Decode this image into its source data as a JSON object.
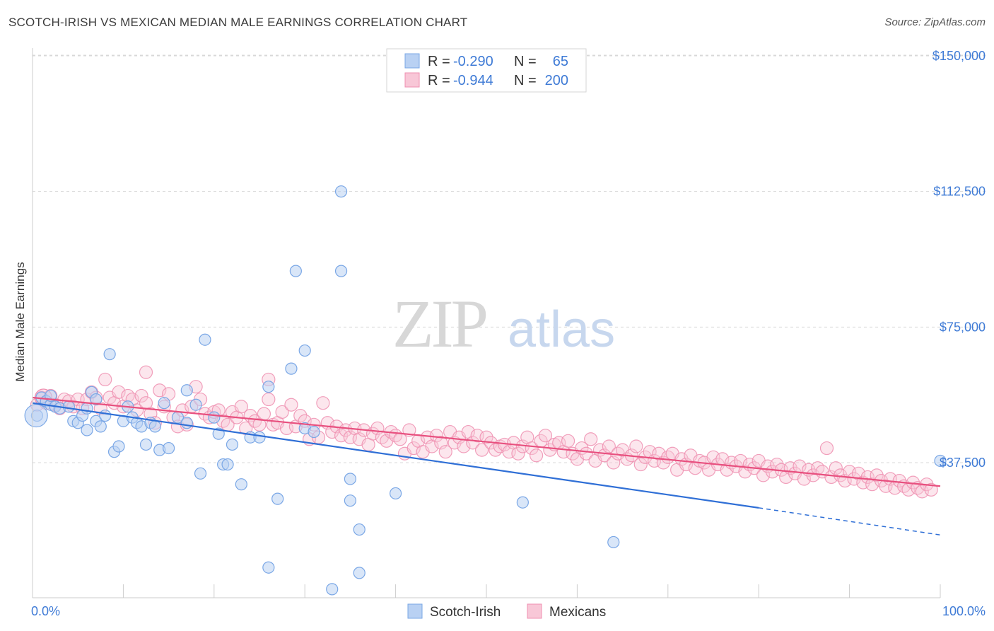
{
  "header": {
    "title": "SCOTCH-IRISH VS MEXICAN MEDIAN MALE EARNINGS CORRELATION CHART",
    "source": "Source: ZipAtlas.com"
  },
  "watermark": {
    "zip": "ZIP",
    "atlas": "atlas"
  },
  "legend": {
    "rows": [
      {
        "r_label": "R = ",
        "r_value": "-0.290",
        "n_label": "N = ",
        "n_value": "65",
        "color": "#a9c6f0"
      },
      {
        "r_label": "R = ",
        "r_value": "-0.944",
        "n_label": "N = ",
        "n_value": "200",
        "color": "#f6b6cb"
      }
    ]
  },
  "bottom_legend": {
    "series1": "Scotch-Irish",
    "series2": "Mexicans"
  },
  "colors": {
    "blue_point": "#7aa7e6",
    "blue_fill": "#b9d1f3",
    "blue_line": "#2f6fd6",
    "pink_point": "#ef8fb0",
    "pink_fill": "#f8c7d7",
    "pink_line": "#e8507f",
    "grid": "#d8d8d8",
    "tick_text": "#3f7bd6"
  },
  "chart_data": {
    "type": "scatter",
    "title": "SCOTCH-IRISH VS MEXICAN MEDIAN MALE EARNINGS CORRELATION CHART",
    "xlabel": "",
    "ylabel": "Median Male Earnings",
    "xlim": [
      0,
      100
    ],
    "ylim": [
      0,
      160000
    ],
    "x_tick_labels": [
      "0.0%",
      "100.0%"
    ],
    "y_ticks": [
      37500,
      75000,
      112500,
      150000
    ],
    "y_tick_labels": [
      "$37,500",
      "$75,000",
      "$112,500",
      "$150,000"
    ],
    "grid": true,
    "legend_position": "top-center",
    "series": [
      {
        "name": "Scotch-Irish",
        "r": -0.29,
        "n": 65,
        "trend": {
          "x0": 0,
          "y0": 54000,
          "x1": 80,
          "y1": 25000,
          "dash_x1": 100,
          "dash_y1": 17500
        },
        "points": [
          [
            0.5,
            50500
          ],
          [
            1,
            55500
          ],
          [
            1.5,
            54500
          ],
          [
            2,
            53500
          ],
          [
            2.5,
            53000
          ],
          [
            3,
            52500
          ],
          [
            4,
            53000
          ],
          [
            4.5,
            49000
          ],
          [
            5,
            48500
          ],
          [
            5.5,
            50500
          ],
          [
            6,
            52500
          ],
          [
            6,
            46500
          ],
          [
            6.5,
            57000
          ],
          [
            7,
            49000
          ],
          [
            7.5,
            47500
          ],
          [
            8,
            50500
          ],
          [
            8.5,
            67500
          ],
          [
            9,
            40500
          ],
          [
            9.5,
            42000
          ],
          [
            10,
            49000
          ],
          [
            10.5,
            53000
          ],
          [
            11,
            50000
          ],
          [
            11.5,
            48500
          ],
          [
            12,
            47500
          ],
          [
            12.5,
            42500
          ],
          [
            13,
            48500
          ],
          [
            13.5,
            47500
          ],
          [
            14,
            41000
          ],
          [
            14.5,
            54000
          ],
          [
            15,
            41500
          ],
          [
            16,
            50000
          ],
          [
            17,
            48500
          ],
          [
            17,
            57500
          ],
          [
            18,
            53500
          ],
          [
            18.5,
            34500
          ],
          [
            19,
            71500
          ],
          [
            20,
            50000
          ],
          [
            20.5,
            45500
          ],
          [
            21,
            37000
          ],
          [
            21.5,
            37000
          ],
          [
            22,
            42500
          ],
          [
            23,
            31500
          ],
          [
            24,
            44500
          ],
          [
            25,
            44500
          ],
          [
            26,
            58500
          ],
          [
            26,
            8500
          ],
          [
            27,
            27500
          ],
          [
            28.5,
            63500
          ],
          [
            29,
            90500
          ],
          [
            30,
            68500
          ],
          [
            30,
            47000
          ],
          [
            31,
            46000
          ],
          [
            33,
            2500
          ],
          [
            34,
            112500
          ],
          [
            34,
            90500
          ],
          [
            35,
            33000
          ],
          [
            35,
            27000
          ],
          [
            36,
            19000
          ],
          [
            36,
            7000
          ],
          [
            40,
            29000
          ],
          [
            54,
            26500
          ],
          [
            64,
            15500
          ],
          [
            100,
            38000
          ],
          [
            2,
            56000
          ],
          [
            7,
            55000
          ]
        ]
      },
      {
        "name": "Mexicans",
        "r": -0.944,
        "n": 200,
        "trend": {
          "x0": 0,
          "y0": 55500,
          "x1": 100,
          "y1": 31000
        },
        "points": [
          [
            0.5,
            53500
          ],
          [
            1,
            55500
          ],
          [
            1.5,
            54000
          ],
          [
            2,
            56000
          ],
          [
            2.5,
            53500
          ],
          [
            3,
            52500
          ],
          [
            3.5,
            55000
          ],
          [
            4,
            54500
          ],
          [
            4.5,
            53000
          ],
          [
            5,
            55000
          ],
          [
            5.5,
            52500
          ],
          [
            6,
            55000
          ],
          [
            6.5,
            57000
          ],
          [
            7,
            55500
          ],
          [
            7.5,
            52500
          ],
          [
            8,
            60500
          ],
          [
            8.5,
            55500
          ],
          [
            9,
            54000
          ],
          [
            9.5,
            57000
          ],
          [
            10,
            53000
          ],
          [
            10.5,
            56000
          ],
          [
            11,
            55000
          ],
          [
            11.5,
            52000
          ],
          [
            12,
            56000
          ],
          [
            12.5,
            54000
          ],
          [
            12.5,
            62500
          ],
          [
            13,
            51000
          ],
          [
            13.5,
            48500
          ],
          [
            14,
            57500
          ],
          [
            14.5,
            53000
          ],
          [
            15,
            56500
          ],
          [
            15.5,
            50000
          ],
          [
            16,
            47500
          ],
          [
            16.5,
            52000
          ],
          [
            17,
            48000
          ],
          [
            17.5,
            53000
          ],
          [
            18,
            58500
          ],
          [
            18.5,
            55000
          ],
          [
            19,
            51000
          ],
          [
            19.5,
            50000
          ],
          [
            20,
            51500
          ],
          [
            20.5,
            52000
          ],
          [
            21,
            49000
          ],
          [
            21.5,
            48000
          ],
          [
            22,
            51500
          ],
          [
            22.5,
            50000
          ],
          [
            23,
            53000
          ],
          [
            23.5,
            47000
          ],
          [
            24,
            50500
          ],
          [
            24.5,
            49000
          ],
          [
            25,
            48000
          ],
          [
            25.5,
            51000
          ],
          [
            26,
            55000
          ],
          [
            26,
            60500
          ],
          [
            26.5,
            48000
          ],
          [
            27,
            48500
          ],
          [
            27.5,
            51500
          ],
          [
            28,
            47000
          ],
          [
            28.5,
            53500
          ],
          [
            29,
            47500
          ],
          [
            29.5,
            50500
          ],
          [
            30,
            49000
          ],
          [
            30.5,
            44000
          ],
          [
            31,
            48000
          ],
          [
            31.5,
            44500
          ],
          [
            32,
            54000
          ],
          [
            32.5,
            48500
          ],
          [
            33,
            46000
          ],
          [
            33.5,
            47500
          ],
          [
            34,
            45000
          ],
          [
            34.5,
            46500
          ],
          [
            35,
            44500
          ],
          [
            35.5,
            47000
          ],
          [
            36,
            44000
          ],
          [
            36.5,
            46500
          ],
          [
            37,
            42500
          ],
          [
            37.5,
            45500
          ],
          [
            38,
            47000
          ],
          [
            38.5,
            44500
          ],
          [
            39,
            43500
          ],
          [
            39.5,
            46000
          ],
          [
            40,
            45000
          ],
          [
            40.5,
            44000
          ],
          [
            41,
            40000
          ],
          [
            41.5,
            46500
          ],
          [
            42,
            41500
          ],
          [
            42.5,
            43500
          ],
          [
            43,
            40500
          ],
          [
            43.5,
            44500
          ],
          [
            44,
            42000
          ],
          [
            44.5,
            45000
          ],
          [
            45,
            43000
          ],
          [
            45.5,
            40500
          ],
          [
            46,
            46000
          ],
          [
            46.5,
            43000
          ],
          [
            47,
            44500
          ],
          [
            47.5,
            42000
          ],
          [
            48,
            46000
          ],
          [
            48.5,
            43000
          ],
          [
            49,
            45000
          ],
          [
            49.5,
            41000
          ],
          [
            50,
            44500
          ],
          [
            50.5,
            43000
          ],
          [
            51,
            41000
          ],
          [
            51.5,
            42000
          ],
          [
            52,
            42500
          ],
          [
            52.5,
            40500
          ],
          [
            53,
            43000
          ],
          [
            53.5,
            40000
          ],
          [
            54,
            42000
          ],
          [
            54.5,
            44500
          ],
          [
            55,
            41500
          ],
          [
            55.5,
            39500
          ],
          [
            56,
            43500
          ],
          [
            56.5,
            45000
          ],
          [
            57,
            41000
          ],
          [
            57.5,
            42500
          ],
          [
            58,
            43000
          ],
          [
            58.5,
            40500
          ],
          [
            59,
            43500
          ],
          [
            59.5,
            40000
          ],
          [
            60,
            38500
          ],
          [
            60.5,
            41500
          ],
          [
            61,
            40000
          ],
          [
            61.5,
            44000
          ],
          [
            62,
            38000
          ],
          [
            62.5,
            41000
          ],
          [
            63,
            39500
          ],
          [
            63.5,
            42000
          ],
          [
            64,
            37500
          ],
          [
            64.5,
            40000
          ],
          [
            65,
            41000
          ],
          [
            65.5,
            38500
          ],
          [
            66,
            39500
          ],
          [
            66.5,
            42000
          ],
          [
            67,
            37000
          ],
          [
            67.5,
            39000
          ],
          [
            68,
            40500
          ],
          [
            68.5,
            38000
          ],
          [
            69,
            40000
          ],
          [
            69.5,
            37500
          ],
          [
            70,
            39000
          ],
          [
            70.5,
            40000
          ],
          [
            71,
            35500
          ],
          [
            71.5,
            38500
          ],
          [
            72,
            37000
          ],
          [
            72.5,
            39500
          ],
          [
            73,
            36000
          ],
          [
            73.5,
            38000
          ],
          [
            74,
            37500
          ],
          [
            74.5,
            35500
          ],
          [
            75,
            39000
          ],
          [
            75.5,
            37000
          ],
          [
            76,
            38500
          ],
          [
            76.5,
            35500
          ],
          [
            77,
            37500
          ],
          [
            77.5,
            36500
          ],
          [
            78,
            38000
          ],
          [
            78.5,
            35000
          ],
          [
            79,
            37000
          ],
          [
            79.5,
            36000
          ],
          [
            80,
            38000
          ],
          [
            80.5,
            34000
          ],
          [
            81,
            36500
          ],
          [
            81.5,
            35000
          ],
          [
            82,
            37000
          ],
          [
            82.5,
            35500
          ],
          [
            83,
            33500
          ],
          [
            83.5,
            36000
          ],
          [
            84,
            34500
          ],
          [
            84.5,
            36500
          ],
          [
            85,
            33000
          ],
          [
            85.5,
            35500
          ],
          [
            86,
            34000
          ],
          [
            86.5,
            36000
          ],
          [
            87,
            35000
          ],
          [
            87.5,
            41500
          ],
          [
            88,
            33500
          ],
          [
            88.5,
            36000
          ],
          [
            89,
            34000
          ],
          [
            89.5,
            32500
          ],
          [
            90,
            35000
          ],
          [
            90.5,
            33000
          ],
          [
            91,
            34500
          ],
          [
            91.5,
            32000
          ],
          [
            92,
            33500
          ],
          [
            92.5,
            31500
          ],
          [
            93,
            34000
          ],
          [
            93.5,
            32500
          ],
          [
            94,
            31000
          ],
          [
            94.5,
            33000
          ],
          [
            95,
            30500
          ],
          [
            95.5,
            32500
          ],
          [
            96,
            31000
          ],
          [
            96.5,
            30000
          ],
          [
            97,
            32000
          ],
          [
            97.5,
            30500
          ],
          [
            98,
            29500
          ],
          [
            98.5,
            31500
          ],
          [
            99,
            30000
          ]
        ]
      }
    ]
  }
}
